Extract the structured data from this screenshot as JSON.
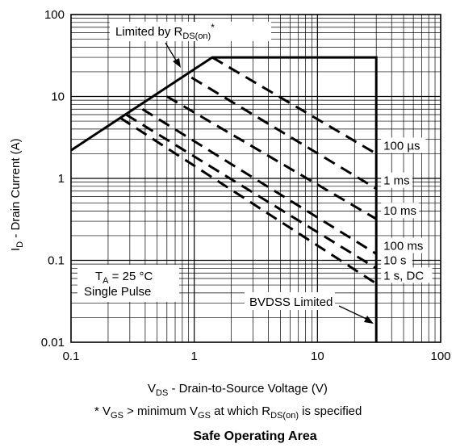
{
  "chart_data": {
    "type": "line",
    "title": "Safe Operating Area",
    "x_scale": "log",
    "y_scale": "log",
    "xlim": [
      0.1,
      100
    ],
    "ylim": [
      0.01,
      100
    ],
    "grid": true,
    "xlabel": {
      "main": "V",
      "sub": "DS",
      "rest": " - Drain-to-Source Voltage (V)"
    },
    "ylabel": {
      "main": "I",
      "sub": "D",
      "rest": " - Drain Current (A)"
    },
    "x_ticks": [
      {
        "value": 0.1,
        "label": "0.1"
      },
      {
        "value": 1,
        "label": "1"
      },
      {
        "value": 10,
        "label": "10"
      },
      {
        "value": 100,
        "label": "100"
      }
    ],
    "y_ticks": [
      {
        "value": 0.01,
        "label": "0.01"
      },
      {
        "value": 0.1,
        "label": "0.1"
      },
      {
        "value": 1,
        "label": "1"
      },
      {
        "value": 10,
        "label": "10"
      },
      {
        "value": 100,
        "label": "100"
      }
    ],
    "boundary": {
      "name": "Limited by RDS(on) / BVDSS Limited",
      "points": [
        [
          0.1,
          2.2
        ],
        [
          1.4,
          30
        ],
        [
          30,
          30
        ],
        [
          30,
          0.01
        ]
      ]
    },
    "series": [
      {
        "name": "100 µs",
        "style": "dashed",
        "label": "100 µs",
        "points": [
          [
            1.4,
            30
          ],
          [
            30,
            2.0
          ]
        ]
      },
      {
        "name": "1 ms",
        "style": "dashed",
        "label": "1 ms",
        "points": [
          [
            0.95,
            17
          ],
          [
            30,
            0.75
          ]
        ]
      },
      {
        "name": "10 ms",
        "style": "dashed",
        "label": "10 ms",
        "points": [
          [
            0.6,
            10
          ],
          [
            30,
            0.32
          ]
        ]
      },
      {
        "name": "100 ms",
        "style": "dashed",
        "label": "100 ms",
        "points": [
          [
            0.38,
            7
          ],
          [
            30,
            0.12
          ]
        ]
      },
      {
        "name": "10 s",
        "style": "dashed",
        "label": "10 s",
        "points": [
          [
            0.28,
            6
          ],
          [
            30,
            0.08
          ]
        ]
      },
      {
        "name": "1 s, DC",
        "style": "dashed",
        "label": "1 s, DC",
        "points": [
          [
            0.25,
            5.5
          ],
          [
            30,
            0.052
          ]
        ]
      }
    ],
    "annotations": {
      "rds": {
        "main": "Limited by R",
        "sub": "DS(on)",
        "sup": "*"
      },
      "bvdss": "BVDSS Limited",
      "conditions_line1": {
        "main": "T",
        "sub": "A",
        "rest": " = 25 °C"
      },
      "conditions_line2": "Single Pulse"
    },
    "footnote": {
      "p1": "* V",
      "s1": "GS",
      "p2": " > minimum V",
      "s2": "GS",
      "p3": " at which R",
      "s3": "DS(on)",
      "p4": " is specified"
    }
  }
}
